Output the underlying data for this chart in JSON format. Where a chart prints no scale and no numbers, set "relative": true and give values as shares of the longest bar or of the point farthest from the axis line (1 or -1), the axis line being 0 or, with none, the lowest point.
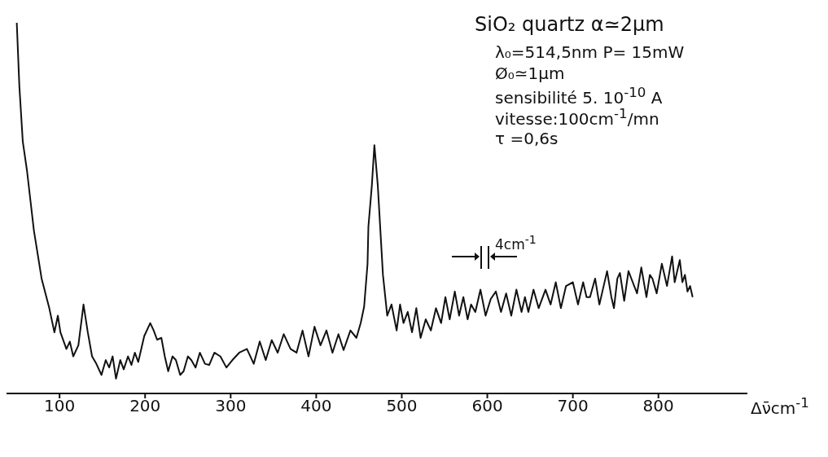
{
  "chart_data": {
    "type": "line",
    "relative": true,
    "marker": "none",
    "line_style": "solid",
    "xlabel": "Δν̄cm$^{-1}$",
    "xlim": [
      38,
      904
    ],
    "xticks": [
      100,
      200,
      300,
      400,
      500,
      600,
      700,
      800
    ],
    "annotations": [
      "SiO₂ quartz α≃2µm",
      "λ₀=514,5nm  P= 15mW",
      "Ø₀≃1µm",
      "sensibilité  5. 10$^{-10}$ A",
      "vitesse:100cm$^{-1}$/mn",
      "τ =0,6s",
      "4cm$^{-1}$"
    ],
    "series": [
      {
        "color": "#111111",
        "x": [
          50,
          53,
          57,
          62,
          70,
          79,
          88,
          94,
          98,
          101,
          108,
          112,
          116,
          122,
          128,
          133,
          138,
          143,
          149,
          154,
          158,
          162,
          166,
          171,
          175,
          180,
          184,
          188,
          192,
          199,
          206,
          210,
          214,
          219,
          223,
          227,
          232,
          236,
          241,
          245,
          250,
          254,
          259,
          264,
          270,
          275,
          281,
          288,
          295,
          302,
          310,
          319,
          327,
          334,
          341,
          348,
          355,
          362,
          370,
          377,
          384,
          391,
          398,
          405,
          412,
          419,
          426,
          432,
          440,
          447,
          452,
          456,
          460,
          461,
          465,
          468,
          472,
          478,
          483,
          488,
          494,
          498,
          502,
          507,
          512,
          517,
          522,
          528,
          534,
          540,
          546,
          551,
          556,
          562,
          567,
          572,
          577,
          581,
          586,
          592,
          598,
          604,
          610,
          616,
          622,
          628,
          634,
          640,
          644,
          648,
          654,
          660,
          668,
          674,
          680,
          686,
          692,
          700,
          706,
          712,
          716,
          720,
          726,
          731,
          735,
          740,
          745,
          748,
          752,
          755,
          760,
          765,
          770,
          775,
          780,
          786,
          790,
          793,
          798,
          804,
          810,
          816,
          819,
          822,
          825,
          828,
          831,
          834,
          837,
          840
        ],
        "values": [
          1.0,
          0.83,
          0.68,
          0.6,
          0.44,
          0.31,
          0.23,
          0.165,
          0.21,
          0.165,
          0.12,
          0.14,
          0.1,
          0.13,
          0.24,
          0.165,
          0.1,
          0.08,
          0.05,
          0.09,
          0.07,
          0.1,
          0.04,
          0.09,
          0.065,
          0.1,
          0.077,
          0.11,
          0.085,
          0.155,
          0.19,
          0.17,
          0.145,
          0.15,
          0.1,
          0.06,
          0.1,
          0.09,
          0.05,
          0.06,
          0.1,
          0.09,
          0.07,
          0.11,
          0.08,
          0.077,
          0.11,
          0.1,
          0.07,
          0.09,
          0.11,
          0.12,
          0.08,
          0.14,
          0.09,
          0.144,
          0.11,
          0.16,
          0.12,
          0.11,
          0.17,
          0.1,
          0.18,
          0.13,
          0.17,
          0.11,
          0.16,
          0.117,
          0.17,
          0.15,
          0.19,
          0.234,
          0.35,
          0.45,
          0.56,
          0.67,
          0.56,
          0.32,
          0.21,
          0.24,
          0.17,
          0.24,
          0.19,
          0.22,
          0.165,
          0.23,
          0.15,
          0.2,
          0.17,
          0.23,
          0.19,
          0.26,
          0.2,
          0.275,
          0.21,
          0.26,
          0.2,
          0.24,
          0.22,
          0.28,
          0.21,
          0.255,
          0.275,
          0.22,
          0.27,
          0.21,
          0.28,
          0.22,
          0.26,
          0.22,
          0.28,
          0.23,
          0.28,
          0.24,
          0.3,
          0.23,
          0.29,
          0.3,
          0.24,
          0.3,
          0.26,
          0.26,
          0.31,
          0.24,
          0.28,
          0.33,
          0.26,
          0.23,
          0.31,
          0.325,
          0.25,
          0.33,
          0.3,
          0.27,
          0.34,
          0.26,
          0.32,
          0.31,
          0.27,
          0.35,
          0.29,
          0.37,
          0.3,
          0.33,
          0.36,
          0.3,
          0.32,
          0.275,
          0.29,
          0.26
        ]
      }
    ]
  }
}
